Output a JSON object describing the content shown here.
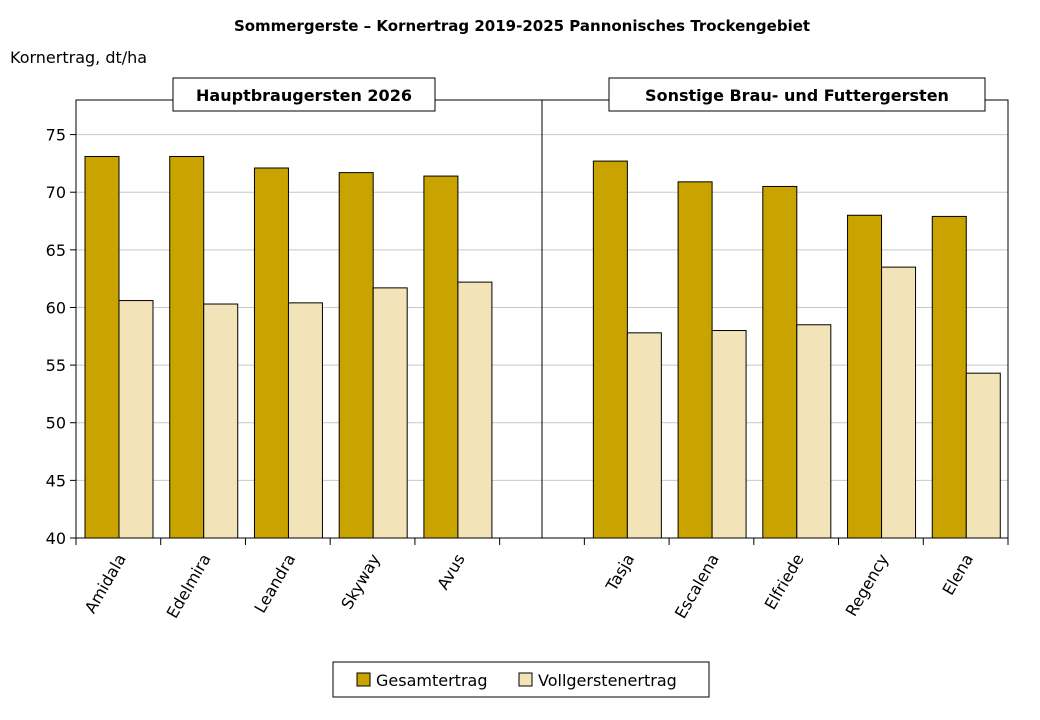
{
  "chart_data": {
    "type": "bar",
    "title": "Sommergerste – Kornertrag 2019-2025 Pannonisches Trockengebiet",
    "ylabel": "Kornertrag, dt/ha",
    "xlabel": "",
    "ylim": [
      40,
      78
    ],
    "yticks": [
      40,
      45,
      50,
      55,
      60,
      65,
      70,
      75
    ],
    "grid": true,
    "legend_position": "bottom",
    "colors": {
      "Gesamtertrag": "#C9A400",
      "Vollgerstenertrag": "#F3E3B9"
    },
    "groups": [
      {
        "label": "Hauptbraugersten 2026",
        "categories": [
          "Amidala",
          "Edelmira",
          "Leandra",
          "Skyway",
          "Avus"
        ]
      },
      {
        "label": "Sonstige Brau- und Futtergersten",
        "categories": [
          "Tasja",
          "Escalena",
          "Elfriede",
          "Regency",
          "Elena"
        ]
      }
    ],
    "categories": [
      "Amidala",
      "Edelmira",
      "Leandra",
      "Skyway",
      "Avus",
      "Tasja",
      "Escalena",
      "Elfriede",
      "Regency",
      "Elena"
    ],
    "series": [
      {
        "name": "Gesamtertrag",
        "values": [
          73.1,
          73.1,
          72.1,
          71.7,
          71.4,
          72.7,
          70.9,
          70.5,
          68.0,
          67.9
        ]
      },
      {
        "name": "Vollgerstenertrag",
        "values": [
          60.6,
          60.3,
          60.4,
          61.7,
          62.2,
          57.8,
          58.0,
          58.5,
          63.5,
          54.3
        ]
      }
    ]
  }
}
